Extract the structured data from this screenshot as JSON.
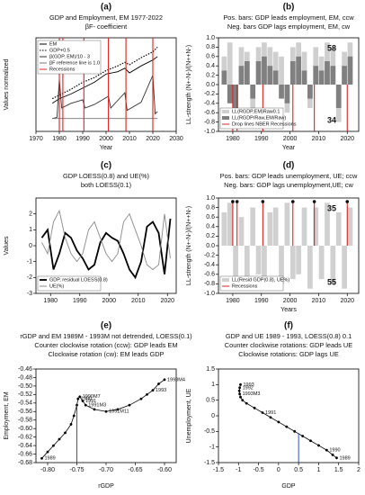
{
  "chart_data": [
    {
      "type": "line",
      "panel": "(a)",
      "title": [
        "GDP and Employment, EM 1977-2022",
        "βF- coefficient"
      ],
      "xlabel": "Year",
      "ylabel": "Values normalized",
      "xlim": [
        1970,
        2030
      ],
      "ylim": [
        -4,
        4
      ],
      "xticks": [
        1970,
        1980,
        1990,
        2000,
        2010,
        2020,
        2030
      ],
      "legend": "upper left",
      "series": [
        {
          "name": "EM",
          "style": "line",
          "color": "#000000",
          "x": [
            1977,
            1980,
            1985,
            1990,
            1995,
            2000,
            2005,
            2008,
            2010,
            2015,
            2020,
            2022
          ],
          "values": [
            -1.6,
            -1.2,
            -0.8,
            -0.3,
            0.2,
            0.9,
            1.1,
            1.4,
            1.0,
            1.6,
            2.1,
            2.4
          ]
        },
        {
          "name": "GDP+0.5",
          "style": "dotted",
          "color": "#000000",
          "x": [
            1977,
            1980,
            1985,
            1990,
            1995,
            2000,
            2005,
            2008,
            2010,
            2015,
            2020,
            2022
          ],
          "values": [
            -1.2,
            -0.9,
            -0.4,
            0.2,
            0.6,
            1.2,
            1.6,
            1.9,
            1.7,
            2.3,
            2.8,
            3.2
          ]
        },
        {
          "name": "β(GDP, EM)/10 - 3",
          "style": "line",
          "color": "#333333",
          "x": [
            1977,
            1979,
            1980,
            1981,
            1985,
            1990,
            1991,
            1995,
            2001,
            2002,
            2008,
            2009,
            2015,
            2020,
            2021,
            2022
          ],
          "values": [
            -2.9,
            -2.8,
            0.5,
            -2.0,
            -1.6,
            -1.3,
            -2.0,
            -1.7,
            -1.0,
            -2.0,
            -0.7,
            -2.2,
            -1.5,
            0.8,
            -2.5,
            -2.3
          ]
        },
        {
          "name": "βF reference line is 1.0",
          "style": "line",
          "color": "#777777",
          "x": [
            1977,
            2022
          ],
          "values": [
            -2.9,
            -2.9
          ]
        },
        {
          "name": "Recessions",
          "style": "vlines",
          "color": "#e02020",
          "x": [
            1980,
            1981.5,
            1990.5,
            2001,
            2008.5,
            2020
          ]
        }
      ]
    },
    {
      "type": "bar",
      "panel": "(b)",
      "title": [
        "Pos. bars: GDP leads employment, EM, ccw",
        "Neg. bars GDP lags employment, EM, cw"
      ],
      "xlabel": "Year",
      "ylabel": "LL-strength (N+-N-)/(N++N-)",
      "xlim": [
        1975,
        2024
      ],
      "ylim": [
        -1,
        1
      ],
      "xticks": [
        1980,
        1990,
        2000,
        2010,
        2020
      ],
      "yticks": [
        {
          "value": -1,
          "label": "-1.0"
        },
        -0.8,
        -0.6,
        -0.4,
        -0.2,
        {
          "value": 0,
          "label": "0.0"
        },
        0.2,
        0.4,
        0.6,
        0.8,
        {
          "value": 1,
          "label": "1.0"
        }
      ],
      "legend": "lower left",
      "annotations": [
        "58",
        "34"
      ],
      "series": [
        {
          "name": "LL(RGDP,EM)Raw0.1",
          "style": "bars",
          "color": "#cfcfcf",
          "x": [
            1977,
            1979,
            1981,
            1983,
            1985,
            1987,
            1989,
            1991,
            1993,
            1995,
            1997,
            1999,
            2001,
            2003,
            2005,
            2007,
            2009,
            2011,
            2013,
            2015,
            2017,
            2019,
            2021
          ],
          "values": [
            0.6,
            0.9,
            -0.9,
            0.8,
            0.7,
            -0.5,
            0.8,
            0.9,
            0.8,
            0.7,
            0.6,
            -0.6,
            0.8,
            0.9,
            0.7,
            -0.5,
            0.8,
            0.6,
            0.9,
            0.8,
            -0.8,
            0.7,
            0.9
          ]
        },
        {
          "name": "LL(RGDP/Raw,EM/Raw)",
          "style": "bars",
          "color": "#808080",
          "x": [
            1977,
            1979,
            1981,
            1983,
            1985,
            1987,
            1989,
            1991,
            1993,
            1995,
            1997,
            1999,
            2001,
            2003,
            2005,
            2007,
            2009,
            2011,
            2013,
            2015,
            2017,
            2019,
            2021
          ],
          "values": [
            0.3,
            -0.4,
            -0.6,
            0.4,
            0.5,
            -0.3,
            0.5,
            0.6,
            0.4,
            0.3,
            -0.3,
            -0.4,
            0.5,
            0.6,
            0.3,
            -0.3,
            0.4,
            0.3,
            0.5,
            0.4,
            -0.5,
            0.4,
            0.6
          ]
        },
        {
          "name": "Drop lines NBER Recessions",
          "style": "drop-down",
          "color": "#e02020",
          "x": [
            1980,
            1981.5,
            1990.5,
            2001,
            2008.5,
            2020
          ]
        }
      ]
    },
    {
      "type": "line",
      "panel": "(c)",
      "title": [
        "GDP LOESS(0.8) and UE(%)",
        "both LOESS(0.1)"
      ],
      "ylabel": "Values",
      "xlim": [
        1975,
        2023
      ],
      "ylim": [
        -3,
        3
      ],
      "xticks": [
        1980,
        1990,
        2000,
        2010,
        2020
      ],
      "yticks": [
        -3,
        -2,
        -1,
        0,
        1,
        2
      ],
      "legend": "lower left",
      "series": [
        {
          "name": "GDP, residual LOESS(0.8)",
          "style": "thick",
          "color": "#000000",
          "x": [
            1977,
            1979,
            1981,
            1983,
            1985,
            1987,
            1989,
            1991,
            1993,
            1995,
            1997,
            1999,
            2001,
            2003,
            2005,
            2007,
            2009,
            2011,
            2013,
            2015,
            2017,
            2019,
            2021
          ],
          "values": [
            0.5,
            1.0,
            -1.5,
            -0.5,
            0.8,
            0.5,
            -0.3,
            -0.8,
            -1.5,
            -1.2,
            0.2,
            0.8,
            0.5,
            0.3,
            -0.5,
            -1.5,
            -2.0,
            -1.0,
            1.2,
            1.5,
            0.8,
            -1.8,
            1.7
          ]
        },
        {
          "name": "UE(%)",
          "style": "line",
          "color": "#888888",
          "x": [
            1977,
            1979,
            1981,
            1983,
            1985,
            1987,
            1989,
            1991,
            1993,
            1995,
            1997,
            1999,
            2001,
            2003,
            2005,
            2007,
            2009,
            2011,
            2013,
            2015,
            2017,
            2019,
            2021
          ],
          "values": [
            0.2,
            -0.5,
            1.5,
            2.2,
            0.5,
            -0.5,
            -1.0,
            -0.5,
            1.0,
            1.5,
            0.5,
            -0.5,
            -1.0,
            -0.5,
            1.5,
            2.0,
            1.0,
            0.0,
            -1.2,
            -1.5,
            -1.2,
            2.0,
            -0.8
          ]
        }
      ]
    },
    {
      "type": "bar",
      "panel": "(d)",
      "title": [
        "Pos. bars: GDP leads unemployment, UE; ccw",
        "Neg. bars: GDP lags unemployment,UE; cw"
      ],
      "xlabel": "Years",
      "ylabel": "LL-strength (N+-N-)/(N++N-)",
      "xlim": [
        1975,
        2024
      ],
      "ylim": [
        -1,
        1
      ],
      "xticks": [
        1980,
        1990,
        2000,
        2010,
        2020
      ],
      "yticks": [
        {
          "value": -1,
          "label": "-1.0"
        },
        -0.8,
        -0.6,
        -0.4,
        -0.2,
        {
          "value": 0,
          "label": "0.0"
        },
        0.2,
        0.4,
        0.6,
        0.8,
        {
          "value": 1,
          "label": "1.0"
        }
      ],
      "legend": "lower left",
      "annotations": [
        "35",
        "55"
      ],
      "series": [
        {
          "name": "LL(Resid GDP(0.8), UE%)",
          "style": "bars",
          "color": "#d0d0d0",
          "x": [
            1977,
            1979,
            1981,
            1983,
            1985,
            1987,
            1989,
            1991,
            1993,
            1995,
            1997,
            1999,
            2001,
            2003,
            2005,
            2007,
            2009,
            2011,
            2013,
            2015,
            2017,
            2019,
            2021
          ],
          "values": [
            0.7,
            0.9,
            -0.8,
            0.6,
            -0.7,
            0.8,
            -0.6,
            -0.9,
            0.7,
            0.8,
            -0.8,
            0.9,
            -0.7,
            -0.6,
            0.8,
            -0.9,
            0.8,
            -0.7,
            0.9,
            -0.8,
            0.7,
            -0.9,
            0.8
          ]
        },
        {
          "name": "Recessions",
          "style": "drop-up-dot",
          "color": "#e02020",
          "x": [
            1980,
            1981.5,
            1990.5,
            2001,
            2008.5,
            2020
          ]
        }
      ]
    },
    {
      "type": "scatter",
      "panel": "(e)",
      "title": [
        "rGDP and EM 1989M - 1993M not detrended, LOESS(0.1)",
        "Counter clockwise rotation (ccw): GDP leads EM",
        "Clockwise rotation (cw): EM leads GDP"
      ],
      "xlabel": "rGDP",
      "ylabel": "Employment, EM",
      "xlim": [
        -0.82,
        -0.58
      ],
      "ylim": [
        -0.68,
        -0.46
      ],
      "xticks": [
        {
          "value": -0.8,
          "label": "-0.80"
        },
        -0.75,
        {
          "value": -0.7,
          "label": "-0.70"
        },
        -0.65,
        {
          "value": -0.6,
          "label": "-0.60"
        }
      ],
      "yticks": [
        -0.68,
        -0.66,
        -0.64,
        -0.62,
        {
          "value": -0.6,
          "label": "-0.60"
        },
        -0.58,
        -0.56,
        -0.54,
        -0.52,
        {
          "value": -0.5,
          "label": "-0.50"
        },
        -0.48,
        -0.46
      ],
      "series": [
        {
          "style": "points",
          "color": "#000000",
          "x": [
            -0.81,
            -0.8,
            -0.79,
            -0.78,
            -0.77,
            -0.76,
            -0.755,
            -0.75,
            -0.748,
            -0.745,
            -0.74,
            -0.735,
            -0.72,
            -0.7,
            -0.68,
            -0.66,
            -0.64,
            -0.63,
            -0.62,
            -0.61,
            -0.6
          ],
          "values": [
            -0.67,
            -0.655,
            -0.64,
            -0.625,
            -0.61,
            -0.59,
            -0.57,
            -0.545,
            -0.53,
            -0.525,
            -0.535,
            -0.545,
            -0.555,
            -0.56,
            -0.555,
            -0.545,
            -0.53,
            -0.52,
            -0.51,
            -0.495,
            -0.485
          ],
          "point_labels": [
            "1989",
            null,
            null,
            null,
            null,
            null,
            null,
            null,
            "1990",
            "1990M7",
            "1991",
            "1991M3",
            null,
            "1991M11",
            null,
            null,
            null,
            null,
            "1993",
            null,
            "1993M4"
          ]
        },
        {
          "style": "line",
          "color": "#1a3fbf",
          "x": [
            -0.75,
            -0.75
          ],
          "values": [
            -0.68,
            -0.545
          ]
        }
      ]
    },
    {
      "type": "scatter",
      "panel": "(f)",
      "title": [
        "GDP and UE 1989 - 1993, LOESS(0.8) 0.1",
        "Counter clockwise rotations: GDP leads UE",
        "Clockwise rotations: GDP lags UE"
      ],
      "xlabel": "GDP",
      "ylabel": "Unemployment, UE",
      "xlim": [
        -1.5,
        2
      ],
      "ylim": [
        -1.5,
        1.5
      ],
      "xticks": [
        -1.5,
        -1,
        -0.5,
        0,
        0.5,
        1,
        1.5,
        2
      ],
      "yticks": [
        -1.5,
        -1,
        -0.5,
        0,
        0.5,
        1,
        1.5
      ],
      "series": [
        {
          "style": "points",
          "color": "#000000",
          "x": [
            -0.95,
            -0.97,
            -0.98,
            -0.97,
            -0.95,
            -0.9,
            -0.8,
            -0.6,
            -0.4,
            -0.2,
            0.0,
            0.2,
            0.4,
            0.6,
            0.8,
            1.0,
            1.2,
            1.35,
            1.45
          ],
          "values": [
            1.0,
            0.9,
            0.8,
            0.7,
            0.6,
            0.5,
            0.4,
            0.25,
            0.1,
            -0.05,
            -0.2,
            -0.35,
            -0.5,
            -0.65,
            -0.8,
            -0.95,
            -1.1,
            -1.25,
            -1.35
          ],
          "point_labels": [
            "1993",
            "1992",
            null,
            "1993M3",
            null,
            null,
            null,
            null,
            "1991",
            null,
            null,
            null,
            null,
            null,
            null,
            null,
            "1990",
            null,
            "1989"
          ]
        },
        {
          "style": "line",
          "color": "#1a3fbf",
          "x": [
            0.5,
            0.5
          ],
          "values": [
            -1.5,
            -0.58
          ]
        }
      ]
    }
  ]
}
